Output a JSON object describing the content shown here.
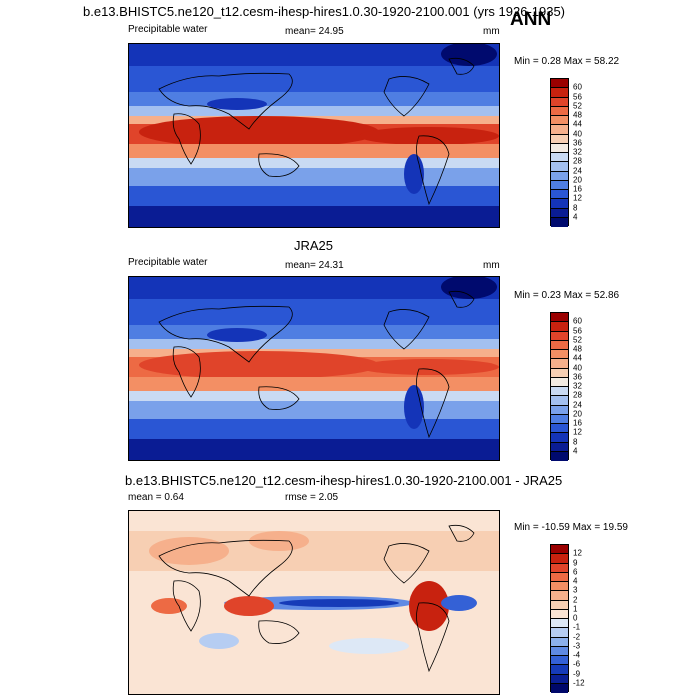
{
  "header": {
    "run_title": "b.e13.BHISTC5.ne120_t12.cesm-ihesp-hires1.0.30-1920-2100.001 (yrs 1926-1935)",
    "season": "ANN"
  },
  "panels": [
    {
      "variable": "Precipitable water",
      "mean_text": "mean=  24.95",
      "units": "mm",
      "minmax_text": "Min =    0.28 Max =  58.22",
      "colorbar_labels": [
        "60",
        "56",
        "52",
        "48",
        "44",
        "40",
        "36",
        "32",
        "28",
        "24",
        "20",
        "16",
        "12",
        "8",
        "4"
      ]
    },
    {
      "title": "JRA25",
      "variable": "Precipitable water",
      "mean_text": "mean=  24.31",
      "units": "mm",
      "minmax_text": "Min =    0.23 Max =  52.86",
      "colorbar_labels": [
        "60",
        "56",
        "52",
        "48",
        "44",
        "40",
        "36",
        "32",
        "28",
        "24",
        "20",
        "16",
        "12",
        "8",
        "4"
      ]
    },
    {
      "title": "b.e13.BHISTC5.ne120_t12.cesm-ihesp-hires1.0.30-1920-2100.001 - JRA25",
      "mean_text": "mean =    0.64",
      "rmse_text": "rmse =    2.05",
      "minmax_text": "Min = -10.59 Max =  19.59",
      "colorbar_labels": [
        "12",
        "9",
        "6",
        "4",
        "3",
        "2",
        "1",
        "0",
        "-1",
        "-2",
        "-3",
        "-4",
        "-6",
        "-9",
        "-12"
      ]
    }
  ],
  "colors": {
    "pw_scale": [
      "#9a0000",
      "#c8220f",
      "#e0442a",
      "#ed6a44",
      "#f38f64",
      "#f6b08c",
      "#f7cfb3",
      "#f3ebe2",
      "#c9daf3",
      "#a3c0f0",
      "#7aa1ea",
      "#4f7ee2",
      "#2a56d4",
      "#1434b8",
      "#0a1c94",
      "#000a6e"
    ],
    "diff_scale": [
      "#9a0000",
      "#c8220f",
      "#e0442a",
      "#ed6a44",
      "#f38f64",
      "#f6b08c",
      "#f7cfb3",
      "#fae4d4",
      "#dde8f6",
      "#b6cdf2",
      "#8cb0ec",
      "#5f8ae4",
      "#3461d6",
      "#163bb8",
      "#0a1f94",
      "#00086a"
    ]
  }
}
